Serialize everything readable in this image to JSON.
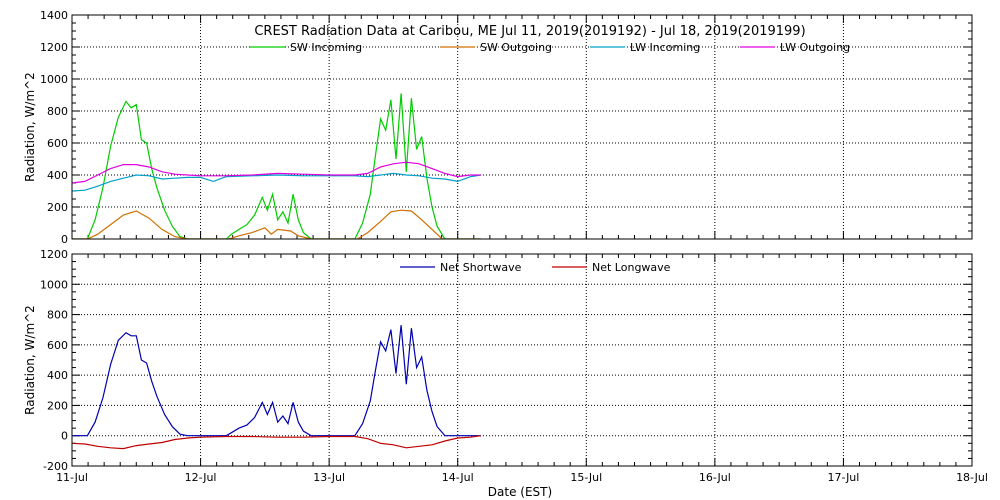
{
  "chart_data": [
    {
      "type": "line",
      "title": "CREST Radiation Data at Caribou, ME   Jul 11, 2019(2019192) - Jul 18, 2019(2019199)",
      "xlabel": "",
      "ylabel": "Radiation, W/m^2",
      "x_range_days": [
        11,
        18
      ],
      "ylim": [
        0,
        1400
      ],
      "yticks": [
        "0",
        "200",
        "400",
        "600",
        "800",
        "1000",
        "1200",
        "1400"
      ],
      "grid": true,
      "legend_position": "top",
      "series": [
        {
          "name": "SW Incoming",
          "color": "#00cc00",
          "x": [
            11.0,
            11.12,
            11.18,
            11.24,
            11.3,
            11.36,
            11.42,
            11.46,
            11.5,
            11.54,
            11.58,
            11.62,
            11.66,
            11.72,
            11.78,
            11.84,
            11.9,
            12.0,
            12.2,
            12.24,
            12.3,
            12.36,
            12.42,
            12.48,
            12.52,
            12.56,
            12.6,
            12.64,
            12.68,
            12.72,
            12.76,
            12.8,
            12.86,
            13.0,
            13.2,
            13.26,
            13.32,
            13.36,
            13.4,
            13.44,
            13.48,
            13.52,
            13.56,
            13.6,
            13.64,
            13.68,
            13.72,
            13.76,
            13.8,
            13.84,
            13.9,
            14.18
          ],
          "values": [
            0,
            0,
            120,
            320,
            580,
            760,
            860,
            820,
            840,
            620,
            600,
            440,
            320,
            180,
            80,
            15,
            0,
            0,
            0,
            30,
            60,
            90,
            150,
            260,
            180,
            280,
            120,
            170,
            100,
            280,
            120,
            40,
            0,
            0,
            0,
            100,
            280,
            520,
            750,
            680,
            870,
            500,
            910,
            420,
            880,
            560,
            640,
            380,
            200,
            80,
            0,
            0
          ]
        },
        {
          "name": "SW Outgoing",
          "color": "#d07000",
          "x": [
            11.0,
            11.12,
            11.2,
            11.3,
            11.4,
            11.5,
            11.6,
            11.7,
            11.8,
            11.9,
            12.0,
            12.22,
            12.3,
            12.4,
            12.5,
            12.55,
            12.6,
            12.7,
            12.76,
            12.86,
            13.0,
            13.22,
            13.3,
            13.4,
            13.48,
            13.56,
            13.64,
            13.72,
            13.8,
            13.88,
            14.0,
            14.18
          ],
          "values": [
            0,
            0,
            30,
            90,
            150,
            175,
            130,
            60,
            15,
            0,
            0,
            0,
            20,
            40,
            70,
            30,
            60,
            50,
            20,
            0,
            0,
            0,
            40,
            110,
            170,
            180,
            175,
            120,
            60,
            0,
            0,
            0
          ],
          "truncated_above_zero_only": true
        },
        {
          "name": "LW Incoming",
          "color": "#00a0c8",
          "x": [
            11.0,
            11.1,
            11.2,
            11.3,
            11.4,
            11.5,
            11.6,
            11.7,
            11.8,
            11.9,
            12.0,
            12.1,
            12.2,
            12.4,
            12.6,
            12.8,
            13.0,
            13.2,
            13.3,
            13.4,
            13.5,
            13.6,
            13.7,
            13.8,
            13.9,
            14.0,
            14.1,
            14.18
          ],
          "values": [
            300,
            305,
            330,
            360,
            380,
            400,
            395,
            375,
            380,
            385,
            385,
            360,
            390,
            395,
            400,
            395,
            395,
            395,
            390,
            400,
            410,
            400,
            395,
            380,
            375,
            360,
            390,
            400
          ]
        },
        {
          "name": "LW Outgoing",
          "color": "#e000e0",
          "x": [
            11.0,
            11.1,
            11.2,
            11.3,
            11.4,
            11.5,
            11.6,
            11.7,
            11.8,
            11.9,
            12.0,
            12.2,
            12.4,
            12.6,
            12.8,
            13.0,
            13.2,
            13.3,
            13.4,
            13.5,
            13.6,
            13.7,
            13.8,
            13.9,
            14.0,
            14.1,
            14.18
          ],
          "values": [
            350,
            360,
            400,
            440,
            465,
            465,
            450,
            420,
            405,
            400,
            395,
            395,
            400,
            410,
            405,
            400,
            400,
            410,
            450,
            470,
            480,
            470,
            440,
            410,
            390,
            400,
            400
          ]
        }
      ]
    },
    {
      "type": "line",
      "title": "",
      "xlabel": "Date (EST)",
      "ylabel": "Radiation, W/m^2",
      "x_range_days": [
        11,
        18
      ],
      "ylim": [
        -200,
        1200
      ],
      "yticks": [
        "-200",
        "0",
        "200",
        "400",
        "600",
        "800",
        "1000",
        "1200"
      ],
      "xticks": [
        "11-Jul",
        "12-Jul",
        "13-Jul",
        "14-Jul",
        "15-Jul",
        "16-Jul",
        "17-Jul",
        "18-Jul"
      ],
      "grid": true,
      "legend_position": "top",
      "series": [
        {
          "name": "Net Shortwave",
          "color": "#0000b0",
          "x": [
            11.0,
            11.12,
            11.18,
            11.24,
            11.3,
            11.36,
            11.42,
            11.46,
            11.5,
            11.54,
            11.58,
            11.62,
            11.66,
            11.72,
            11.78,
            11.84,
            11.9,
            12.0,
            12.2,
            12.24,
            12.3,
            12.36,
            12.42,
            12.48,
            12.52,
            12.56,
            12.6,
            12.64,
            12.68,
            12.72,
            12.76,
            12.8,
            12.86,
            13.0,
            13.2,
            13.26,
            13.32,
            13.36,
            13.4,
            13.44,
            13.48,
            13.52,
            13.56,
            13.6,
            13.64,
            13.68,
            13.72,
            13.76,
            13.8,
            13.84,
            13.9,
            14.18
          ],
          "values": [
            0,
            0,
            90,
            250,
            470,
            630,
            680,
            660,
            660,
            500,
            480,
            360,
            260,
            140,
            60,
            10,
            0,
            0,
            0,
            20,
            50,
            70,
            120,
            220,
            140,
            220,
            90,
            130,
            80,
            220,
            90,
            30,
            0,
            0,
            0,
            80,
            230,
            430,
            620,
            560,
            700,
            410,
            730,
            340,
            710,
            450,
            520,
            300,
            160,
            60,
            0,
            0
          ]
        },
        {
          "name": "Net Longwave",
          "color": "#c00000",
          "x": [
            11.0,
            11.1,
            11.2,
            11.3,
            11.4,
            11.5,
            11.6,
            11.7,
            11.8,
            11.9,
            12.0,
            12.2,
            12.4,
            12.6,
            12.8,
            13.0,
            13.2,
            13.3,
            13.4,
            13.5,
            13.6,
            13.7,
            13.8,
            13.9,
            14.0,
            14.1,
            14.18
          ],
          "values": [
            -50,
            -55,
            -70,
            -80,
            -85,
            -65,
            -55,
            -45,
            -25,
            -15,
            -10,
            -5,
            -5,
            -10,
            -10,
            -5,
            -5,
            -20,
            -50,
            -60,
            -80,
            -70,
            -60,
            -35,
            -15,
            -10,
            0
          ]
        }
      ]
    }
  ]
}
